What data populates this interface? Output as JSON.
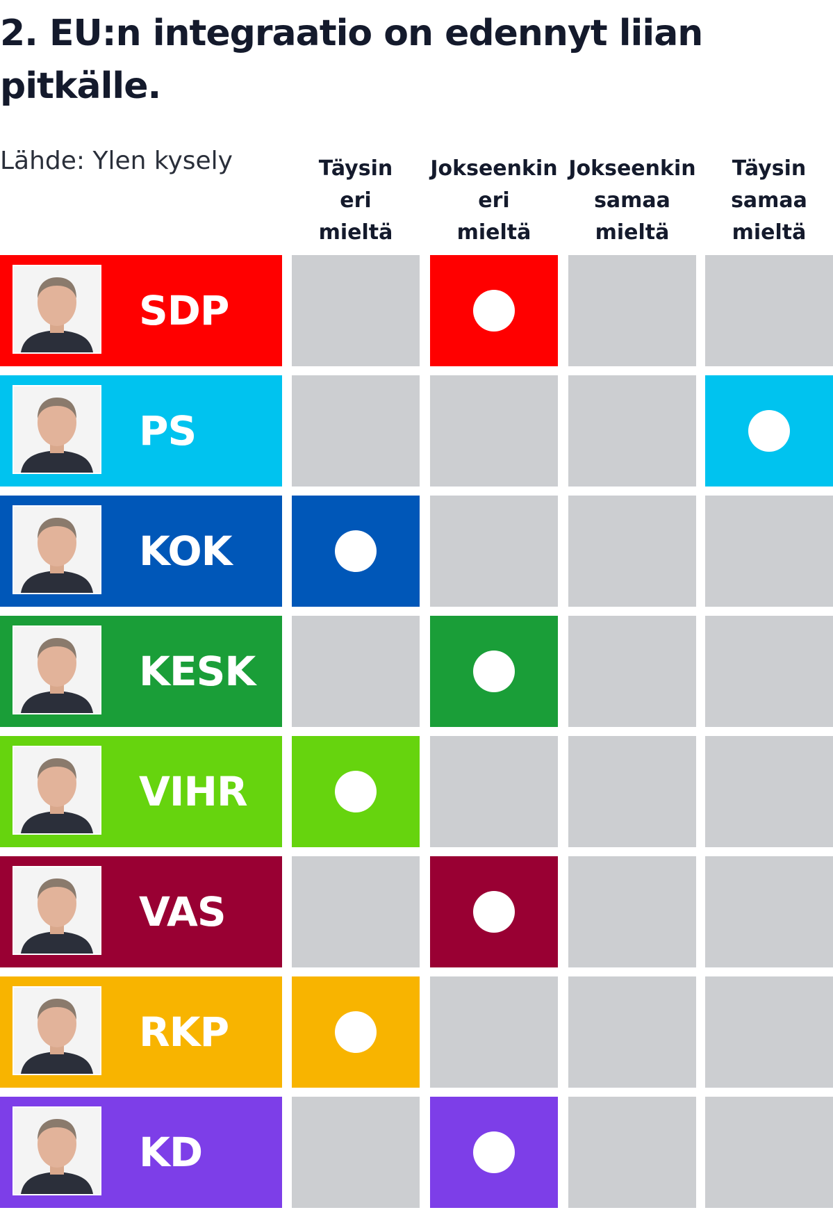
{
  "chart_data": {
    "type": "table",
    "title": "2. EU:n integraatio on edennyt liian pitkälle.",
    "source": "Lähde: Ylen kysely",
    "columns": [
      [
        "Täysin",
        "eri",
        "mieltä"
      ],
      [
        "Jokseenkin",
        "eri",
        "mieltä"
      ],
      [
        "Jokseenkin",
        "samaa",
        "mieltä"
      ],
      [
        "Täysin",
        "samaa",
        "mieltä"
      ]
    ],
    "rows": [
      {
        "party": "SDP",
        "color": "#ff0000",
        "answer_index": 1,
        "icon": "portrait-icon"
      },
      {
        "party": "PS",
        "color": "#00c3ef",
        "answer_index": 3,
        "icon": "portrait-icon"
      },
      {
        "party": "KOK",
        "color": "#0057b8",
        "answer_index": 0,
        "icon": "portrait-icon"
      },
      {
        "party": "KESK",
        "color": "#1a9e38",
        "answer_index": 1,
        "icon": "portrait-icon"
      },
      {
        "party": "VIHR",
        "color": "#66d40e",
        "answer_index": 0,
        "icon": "portrait-icon"
      },
      {
        "party": "VAS",
        "color": "#990033",
        "answer_index": 1,
        "icon": "portrait-icon"
      },
      {
        "party": "RKP",
        "color": "#f8b400",
        "answer_index": 0,
        "icon": "portrait-icon"
      },
      {
        "party": "KD",
        "color": "#7d3ee8",
        "answer_index": 1,
        "icon": "portrait-icon"
      }
    ],
    "empty_cell_color": "#ccced1",
    "marker_color": "#ffffff"
  }
}
